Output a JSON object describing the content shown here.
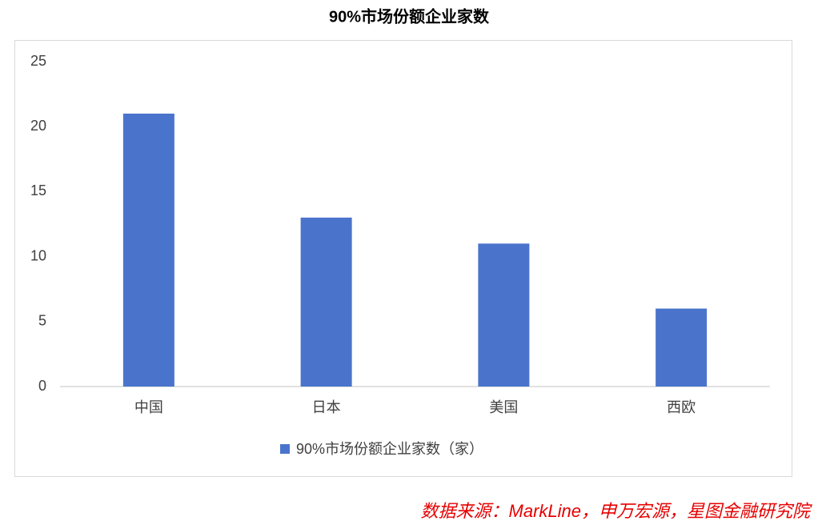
{
  "chart_data": {
    "type": "bar",
    "title": "90%市场份额企业家数",
    "categories": [
      "中国",
      "日本",
      "美国",
      "西欧"
    ],
    "series": [
      {
        "name": "90%市场份额企业家数（家）",
        "color": "#4a74cc",
        "values": [
          21,
          13,
          11,
          6
        ]
      }
    ],
    "ylim": [
      0,
      25
    ],
    "yticks": [
      0,
      5,
      10,
      15,
      20,
      25
    ],
    "grid": false,
    "legend": "bottom",
    "source": "数据来源：MarkLine，申万宏源，星图金融研究院"
  }
}
